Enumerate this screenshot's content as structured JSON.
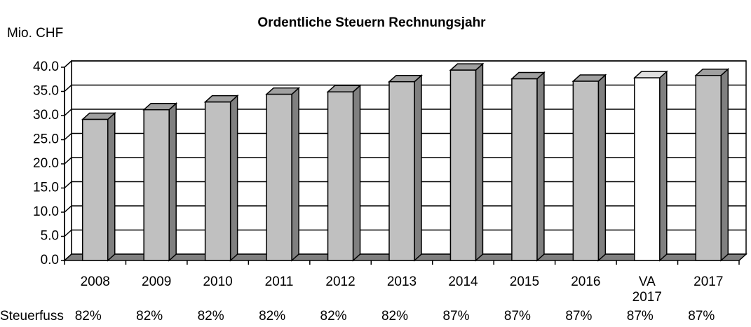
{
  "chart_data": {
    "type": "bar3d",
    "title": "Ordentliche Steuern Rechnungsjahr",
    "y_label": "Mio. CHF",
    "categories": [
      "2008",
      "2009",
      "2010",
      "2011",
      "2012",
      "2013",
      "2014",
      "2015",
      "2016",
      "VA 2017",
      "2017"
    ],
    "values": [
      29.2,
      31.2,
      32.8,
      34.4,
      34.9,
      37.0,
      39.4,
      37.6,
      37.1,
      37.8,
      38.3
    ],
    "colors": [
      "#c0c0c0",
      "#c0c0c0",
      "#c0c0c0",
      "#c0c0c0",
      "#c0c0c0",
      "#c0c0c0",
      "#c0c0c0",
      "#c0c0c0",
      "#c0c0c0",
      "#ffffff",
      "#c0c0c0"
    ],
    "ylim": [
      0,
      40
    ],
    "yticks": [
      {
        "value": 0,
        "label": "0.0"
      },
      {
        "value": 5,
        "label": "5.0"
      },
      {
        "value": 10,
        "label": "10.0"
      },
      {
        "value": 15,
        "label": "15.0"
      },
      {
        "value": 20,
        "label": "20.0"
      },
      {
        "value": 25,
        "label": "25.0"
      },
      {
        "value": 30,
        "label": "30.0"
      },
      {
        "value": 35,
        "label": "35.0"
      },
      {
        "value": 40,
        "label": "40.0"
      }
    ],
    "grid": true,
    "steuerfuss": {
      "label": "Steuerfuss",
      "values": [
        82,
        82,
        82,
        82,
        82,
        82,
        87,
        87,
        87,
        87,
        87
      ],
      "value_labels": [
        "82%",
        "82%",
        "82%",
        "82%",
        "82%",
        "82%",
        "87%",
        "87%",
        "87%",
        "87%",
        "87%"
      ]
    }
  }
}
